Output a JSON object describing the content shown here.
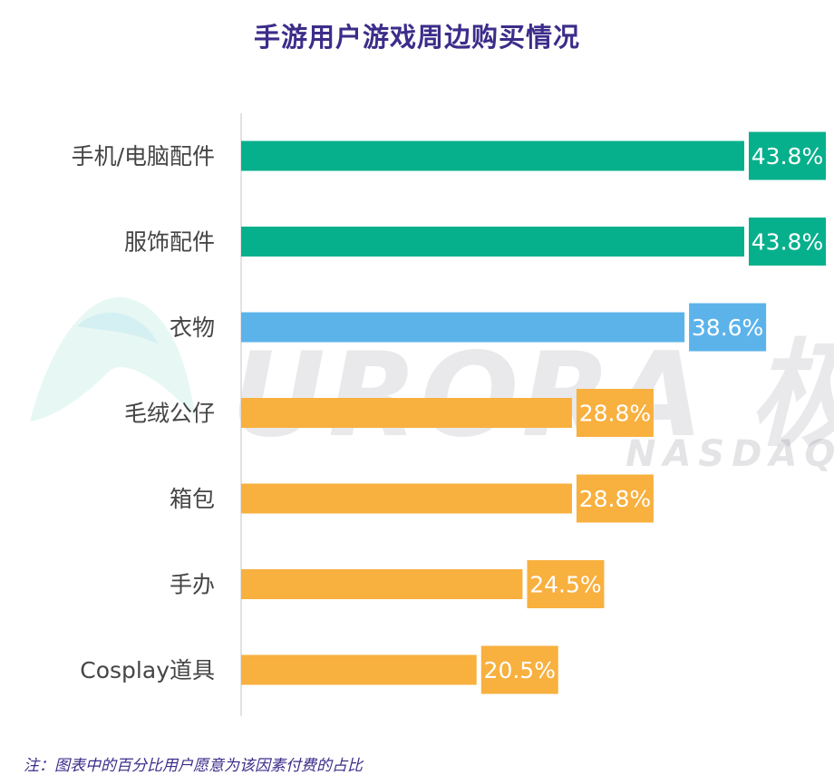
{
  "title": "手游用户游戏周边购买情况",
  "footnote": "注：图表中的百分比用户愿意为该因素付费的占比",
  "watermark": {
    "main": "URORA 极光",
    "sub": "NASDAQ: J"
  },
  "colors": {
    "teal": "#07b08c",
    "blue": "#5cb3ea",
    "orange": "#f8b03f",
    "title": "#3b2d8a",
    "axis": "#d9d9d9",
    "label": "#454545"
  },
  "chart_data": {
    "type": "bar",
    "orientation": "horizontal",
    "title": "手游用户游戏周边购买情况",
    "categories": [
      "手机/电脑配件",
      "服饰配件",
      "衣物",
      "毛绒公仔",
      "箱包",
      "手办",
      "Cosplay道具"
    ],
    "values": [
      43.8,
      43.8,
      38.6,
      28.8,
      28.8,
      24.5,
      20.5
    ],
    "value_labels": [
      "43.8%",
      "43.8%",
      "38.6%",
      "28.8%",
      "28.8%",
      "24.5%",
      "20.5%"
    ],
    "bar_colors": [
      "#07b08c",
      "#07b08c",
      "#5cb3ea",
      "#f8b03f",
      "#f8b03f",
      "#f8b03f",
      "#f8b03f"
    ],
    "unit": "%",
    "xlim": [
      0,
      43.8
    ],
    "grid": false,
    "legend": "none"
  }
}
